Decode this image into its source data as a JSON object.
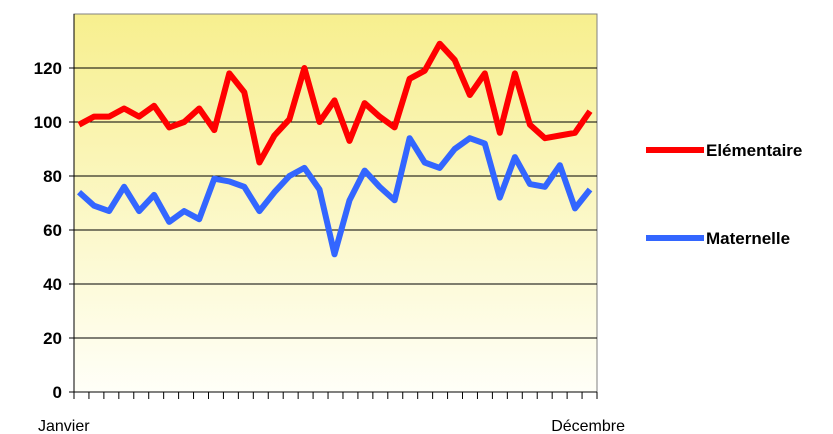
{
  "chart_data": {
    "type": "line",
    "x_start_label": "Janvier",
    "x_end_label": "Décembre",
    "yticks": [
      "0",
      "20",
      "40",
      "60",
      "80",
      "100",
      "120"
    ],
    "ylim": [
      0,
      140
    ],
    "grid": "horizontal",
    "legend_position": "right",
    "series": [
      {
        "name": "Elémentaire",
        "color": "#ff0000",
        "values": [
          99,
          102,
          102,
          105,
          102,
          106,
          98,
          100,
          105,
          97,
          118,
          111,
          85,
          95,
          101,
          120,
          100,
          108,
          93,
          107,
          102,
          98,
          116,
          119,
          129,
          123,
          110,
          118,
          96,
          118,
          99,
          94,
          95,
          96,
          104
        ]
      },
      {
        "name": "Maternelle",
        "color": "#3366ff",
        "values": [
          74,
          69,
          67,
          76,
          67,
          73,
          63,
          67,
          64,
          79,
          78,
          76,
          67,
          74,
          80,
          83,
          75,
          51,
          71,
          82,
          76,
          71,
          94,
          85,
          83,
          90,
          94,
          92,
          72,
          87,
          77,
          76,
          84,
          68,
          75
        ]
      }
    ]
  }
}
